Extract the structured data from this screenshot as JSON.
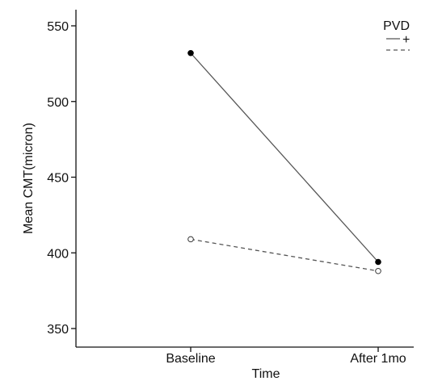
{
  "chart_data": {
    "type": "line",
    "title": "",
    "xlabel": "Time",
    "ylabel": "Mean CMT(micron)",
    "categories": [
      "Baseline",
      "After 1mo"
    ],
    "yticks": [
      350,
      400,
      450,
      500,
      550
    ],
    "ylim": [
      340,
      560
    ],
    "grid": false,
    "legend": {
      "title": "PVD",
      "placement": "top-right"
    },
    "series": [
      {
        "name": "+",
        "values": [
          532,
          394
        ],
        "line_style": "solid",
        "marker": "filled-circle",
        "color": "#555555"
      },
      {
        "name": "−",
        "values": [
          409,
          388
        ],
        "line_style": "dashed",
        "marker": "open-circle",
        "color": "#555555"
      }
    ]
  }
}
